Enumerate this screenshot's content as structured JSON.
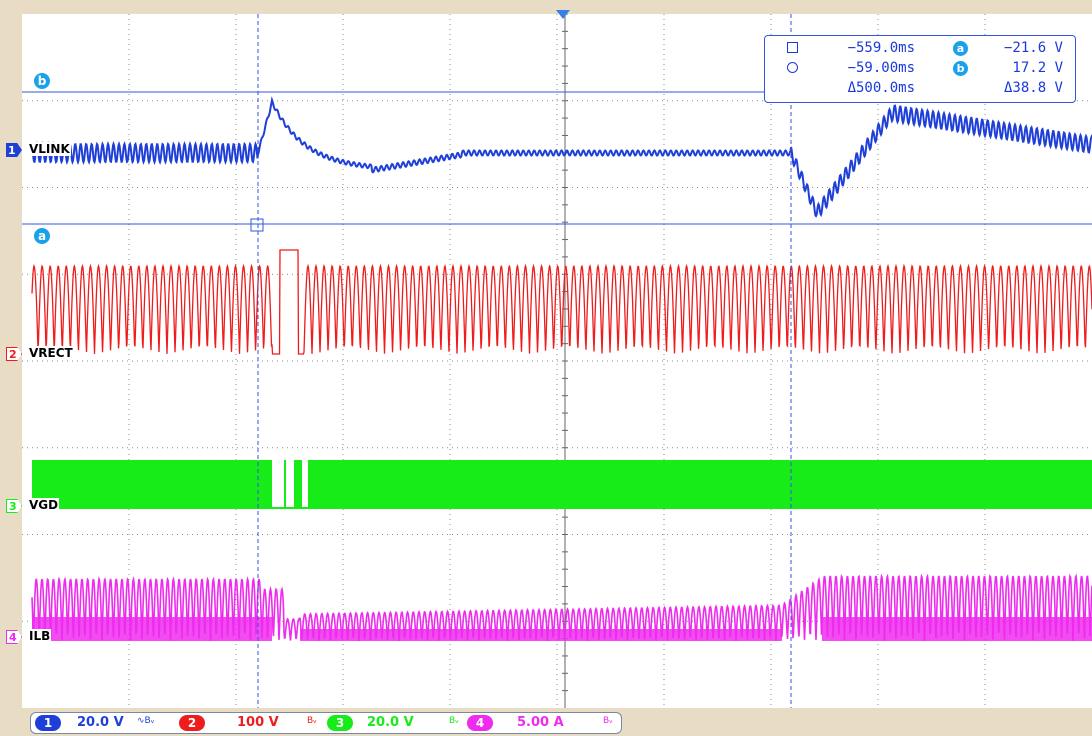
{
  "colors": {
    "ch1": "#1f3fd9",
    "ch2": "#ee1c1c",
    "ch3": "#18ec18",
    "ch4": "#ee2bee",
    "cursor": "#1ba0ea",
    "grid": "#8a8a8a",
    "bezel": "#e8dcc4"
  },
  "channels": [
    {
      "number": "1",
      "label": "VLINK",
      "scale": "20.0 V",
      "bw": "∿Bᵥ"
    },
    {
      "number": "2",
      "label": "VRECT",
      "scale": "100 V",
      "bw": "Bᵥ"
    },
    {
      "number": "3",
      "label": "VGD",
      "scale": "20.0 V",
      "bw": "Bᵥ"
    },
    {
      "number": "4",
      "label": "ILB",
      "scale": "5.00 A",
      "bw": "Bᵥ"
    }
  ],
  "measurements": {
    "cursor1_time": "−559.0ms",
    "cursor2_time": "−59.00ms",
    "delta_time": "Δ500.0ms",
    "cursor_a_label": "a",
    "cursor_b_label": "b",
    "cursor_a_value": "−21.6 V",
    "cursor_b_value": "17.2 V",
    "delta_value": "Δ38.8 V"
  },
  "chart_data": {
    "type": "line",
    "grid": true,
    "time_cursors_ms": [
      -559.0,
      -59.0
    ],
    "voltage_cursors_v": {
      "a": -21.6,
      "b": 17.2
    },
    "series": [
      {
        "name": "VLINK",
        "behavior": "ripple, overshoot at first cursor, settles, undershoot then ringing at second cursor"
      },
      {
        "name": "VRECT",
        "behavior": "rectified sinusoid, brief dropout at first cursor"
      },
      {
        "name": "VGD",
        "behavior": "dense gate-drive pulses, gaps at first cursor"
      },
      {
        "name": "ILB",
        "behavior": "high-frequency current envelope, drops after first cursor, rises after second cursor"
      }
    ]
  }
}
